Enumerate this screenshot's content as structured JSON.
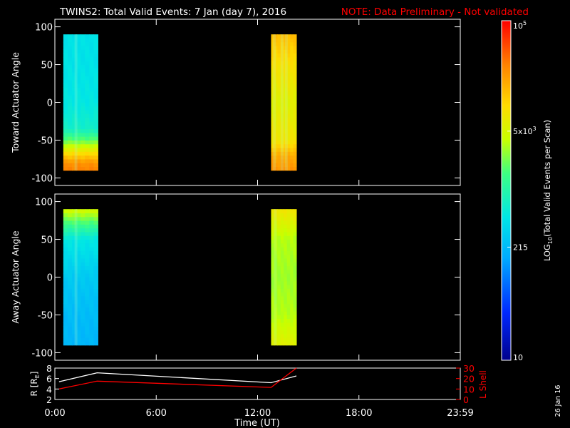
{
  "header": {
    "title": "TWINS2: Total Valid Events:  7 Jan (day   7), 2016",
    "note": "NOTE: Data Preliminary - Not validated"
  },
  "colors": {
    "background": "#000000",
    "axes": "#ffffff",
    "note": "#ff0000",
    "r_line": "#ffffff",
    "lshell_line": "#ff0000"
  },
  "colorbar": {
    "label": "LOG",
    "label_sub": "10",
    "label_rest": "(Total Valid  Events per Scan)",
    "scale": "log",
    "range": [
      10,
      100000
    ],
    "ticks": [
      {
        "value": 10,
        "text": "10"
      },
      {
        "value": 215,
        "text": "215"
      },
      {
        "value": 5000,
        "text": "5x10",
        "sup": "3"
      },
      {
        "value": 100000,
        "text": "10",
        "sup": "5"
      }
    ]
  },
  "chart_data": [
    {
      "type": "heatmap",
      "name": "toward",
      "ylabel": "Toward Actuator Angle",
      "xlim": [
        0,
        24
      ],
      "ylim": [
        -110,
        110
      ],
      "yticks": [
        100,
        50,
        0,
        -50,
        -100
      ],
      "scale": "log",
      "y_edges": [
        -90,
        90
      ],
      "segments": [
        {
          "x_range": [
            0.5,
            2.55
          ],
          "angle_profile": [
            [
              -90,
              30000
            ],
            [
              -80,
              25000
            ],
            [
              -65,
              8000
            ],
            [
              -50,
              2000
            ],
            [
              -35,
              700
            ],
            [
              0,
              500
            ],
            [
              50,
              450
            ],
            [
              90,
              450
            ]
          ],
          "bright_columns": [
            1.25
          ]
        },
        {
          "x_range": [
            12.8,
            14.3
          ],
          "angle_profile": [
            [
              -90,
              25000
            ],
            [
              -70,
              18000
            ],
            [
              -50,
              8000
            ],
            [
              0,
              6000
            ],
            [
              50,
              9000
            ],
            [
              90,
              15000
            ]
          ],
          "bright_columns": [
            13.0,
            13.45,
            13.7
          ]
        }
      ]
    },
    {
      "type": "heatmap",
      "name": "away",
      "ylabel": "Away Actuator Angle",
      "xlim": [
        0,
        24
      ],
      "ylim": [
        -110,
        110
      ],
      "yticks": [
        100,
        50,
        0,
        -50,
        -100
      ],
      "scale": "log",
      "y_edges": [
        -90,
        90
      ],
      "segments": [
        {
          "x_range": [
            0.5,
            2.55
          ],
          "angle_profile": [
            [
              -90,
              200
            ],
            [
              -50,
              220
            ],
            [
              0,
              280
            ],
            [
              50,
              500
            ],
            [
              70,
              1500
            ],
            [
              90,
              5000
            ]
          ],
          "bright_columns": [
            1.25
          ]
        },
        {
          "x_range": [
            12.8,
            14.3
          ],
          "angle_profile": [
            [
              -90,
              6000
            ],
            [
              -50,
              3500
            ],
            [
              0,
              3000
            ],
            [
              50,
              3500
            ],
            [
              90,
              8000
            ]
          ],
          "bright_columns": [
            13.05
          ]
        }
      ]
    },
    {
      "type": "line",
      "name": "ephemeris",
      "xlim": [
        0,
        24
      ],
      "xticks": [
        0,
        6,
        12,
        18,
        24
      ],
      "xticklabels": [
        "0:00",
        "6:00",
        "12:00",
        "18:00",
        "23:59"
      ],
      "xlabel": "Time (UT)",
      "y_left_label": "R [R",
      "y_left_label_sub": "E",
      "y_left_label_end": "]",
      "y_left_lim": [
        2,
        8
      ],
      "y_left_ticks": [
        2,
        4,
        6,
        8
      ],
      "y_right_label": "L Shell",
      "y_right_lim": [
        0,
        30
      ],
      "y_right_ticks": [
        0,
        10,
        20,
        30
      ],
      "series": [
        {
          "axis": "left",
          "color": "#ffffff",
          "points": [
            [
              0.25,
              5.4
            ],
            [
              2.5,
              7.1
            ],
            [
              12.8,
              5.2
            ],
            [
              14.3,
              6.5
            ]
          ]
        },
        {
          "axis": "right",
          "color": "#ff0000",
          "points": [
            [
              0.25,
              10
            ],
            [
              2.5,
              17.5
            ],
            [
              12.8,
              11.5
            ],
            [
              14.3,
              30
            ]
          ]
        }
      ]
    }
  ],
  "footer": {
    "date_stamp": "26 Jan 16"
  }
}
